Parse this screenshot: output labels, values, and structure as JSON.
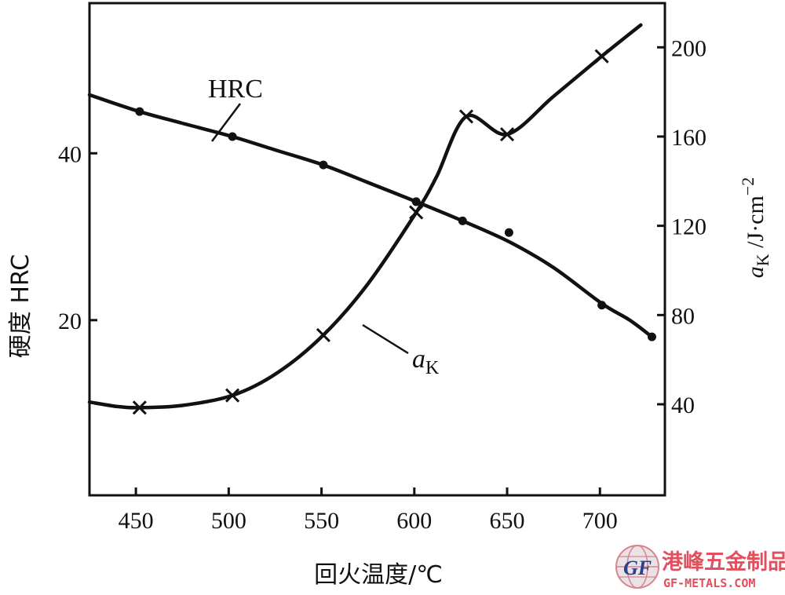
{
  "chart_data": {
    "type": "line",
    "x_range": [
      425,
      735
    ],
    "y_left_range": [
      -1,
      58
    ],
    "y_right_range": [
      -0.8,
      219.8
    ],
    "x_ticks": [
      450,
      500,
      550,
      600,
      650,
      700
    ],
    "x_tick_labels": [
      "450",
      "500",
      "550",
      "600",
      "650",
      "700"
    ],
    "y_left_ticks": [
      20,
      40
    ],
    "y_left_tick_labels": [
      "20",
      "40"
    ],
    "y_right_ticks": [
      40,
      80,
      120,
      160,
      200
    ],
    "y_right_tick_labels": [
      "40",
      "80",
      "120",
      "160",
      "200"
    ],
    "xlabel": "回火温度/℃",
    "ylabel_left": "硬度  HRC",
    "ylabel_right_main": "a",
    "ylabel_right_sub": "K",
    "ylabel_right_unit": " /J·cm",
    "ylabel_right_sup": "−2",
    "grid": false,
    "series": [
      {
        "name": "HRC",
        "axis": "left",
        "marker": "dot",
        "curve": [
          [
            425,
            47
          ],
          [
            452,
            45
          ],
          [
            475,
            43.6
          ],
          [
            502,
            42
          ],
          [
            525,
            40.4
          ],
          [
            551,
            38.6
          ],
          [
            575,
            36.5
          ],
          [
            601,
            34.2
          ],
          [
            626,
            31.9
          ],
          [
            651,
            29.4
          ],
          [
            675,
            26.3
          ],
          [
            701,
            22
          ],
          [
            716,
            20
          ],
          [
            728,
            18
          ]
        ],
        "points": [
          [
            452,
            45
          ],
          [
            502,
            42
          ],
          [
            551,
            38.6
          ],
          [
            601,
            34.2
          ],
          [
            626,
            31.9
          ],
          [
            651,
            30.5
          ],
          [
            701,
            21.8
          ],
          [
            728,
            18
          ]
        ]
      },
      {
        "name_main": "a",
        "name_sub": "K",
        "axis": "right",
        "marker": "cross",
        "curve": [
          [
            425,
            41
          ],
          [
            440,
            39
          ],
          [
            452,
            38.5
          ],
          [
            475,
            39.5
          ],
          [
            502,
            44
          ],
          [
            526,
            54
          ],
          [
            551,
            71
          ],
          [
            575,
            94
          ],
          [
            601,
            126
          ],
          [
            612,
            142
          ],
          [
            628,
            169
          ],
          [
            650,
            161
          ],
          [
            675,
            178
          ],
          [
            701,
            196
          ],
          [
            722,
            210
          ]
        ],
        "points": [
          [
            452,
            38.5
          ],
          [
            502,
            44
          ],
          [
            551,
            71
          ],
          [
            601,
            126
          ],
          [
            628,
            169
          ],
          [
            650,
            161
          ],
          [
            701,
            196
          ]
        ]
      }
    ]
  },
  "watermark": {
    "text": "港峰五金制品",
    "url": "GF-METALS.COM",
    "logo_text": "GF",
    "text_color": "#e0505e",
    "url_color": "#e0505e"
  }
}
